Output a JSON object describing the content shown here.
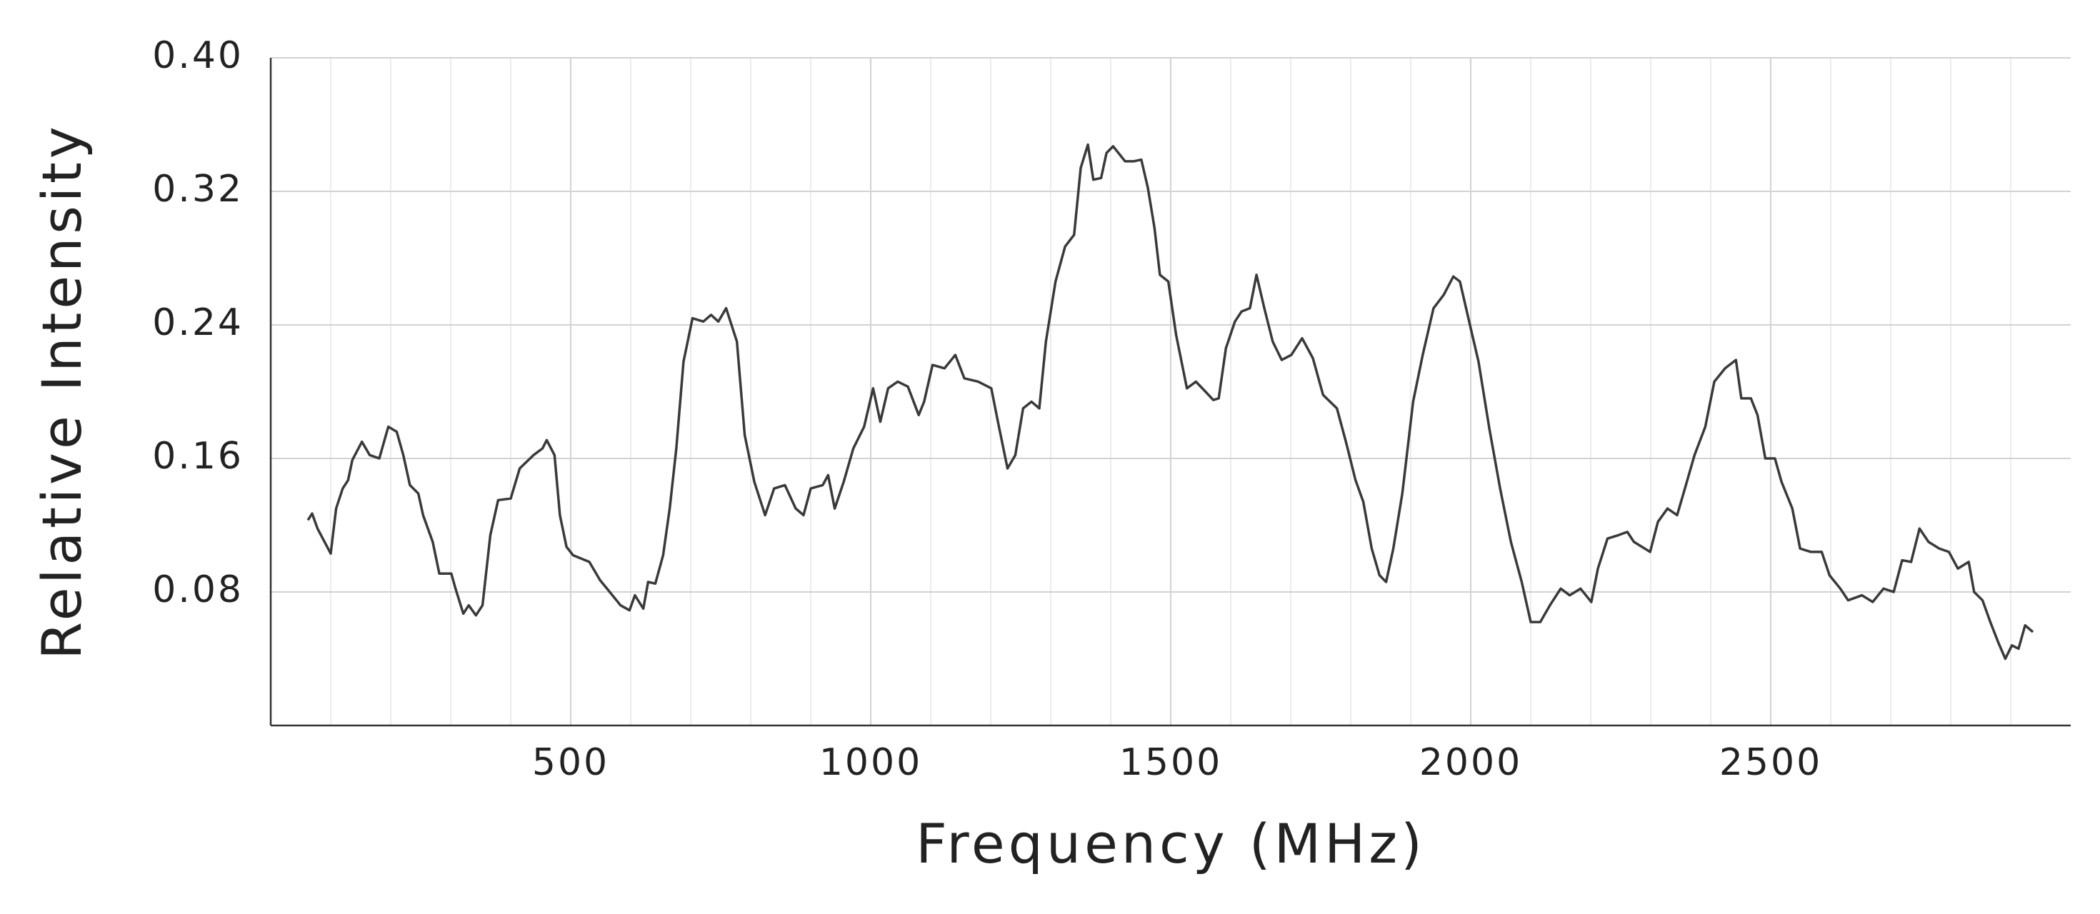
{
  "chart_data": {
    "type": "line",
    "x_label": "Frequency (MHz)",
    "y_label": "Relative Intensity",
    "xlim": [
      0,
      3000
    ],
    "xticks": [
      500,
      1000,
      1500,
      2000,
      2500
    ],
    "ylim": [
      0,
      0.4
    ],
    "yticks": [
      0.08,
      0.16,
      0.24,
      0.32,
      {
        "value": 0.4,
        "label": "0.40"
      }
    ],
    "grid": true,
    "series": [
      {
        "color": "#3a3a3a",
        "x": [
          62,
          69,
          78,
          100,
          109,
          120,
          129,
          136,
          152,
          165,
          181,
          196,
          210,
          221,
          232,
          246,
          254,
          270,
          281,
          301,
          308,
          321,
          330,
          342,
          353,
          366,
          379,
          400,
          415,
          438,
          453,
          460,
          473,
          482,
          493,
          504,
          531,
          549,
          565,
          583,
          598,
          607,
          621,
          629,
          641,
          654,
          665,
          676,
          688,
          703,
          721,
          734,
          746,
          759,
          777,
          790,
          806,
          824,
          839,
          857,
          875,
          888,
          900,
          920,
          929,
          940,
          955,
          971,
          989,
          1004,
          1016,
          1029,
          1045,
          1062,
          1080,
          1089,
          1103,
          1123,
          1141,
          1156,
          1179,
          1201,
          1212,
          1228,
          1241,
          1254,
          1268,
          1281,
          1292,
          1308,
          1324,
          1339,
          1350,
          1362,
          1371,
          1384,
          1393,
          1404,
          1424,
          1438,
          1451,
          1462,
          1473,
          1482,
          1496,
          1509,
          1527,
          1542,
          1558,
          1571,
          1580,
          1592,
          1607,
          1618,
          1632,
          1643,
          1656,
          1670,
          1685,
          1701,
          1719,
          1737,
          1754,
          1777,
          1792,
          1808,
          1821,
          1835,
          1848,
          1859,
          1871,
          1886,
          1904,
          1920,
          1938,
          1955,
          1971,
          1982,
          2000,
          2013,
          2031,
          2049,
          2067,
          2085,
          2100,
          2116,
          2132,
          2150,
          2165,
          2183,
          2201,
          2212,
          2228,
          2246,
          2261,
          2272,
          2299,
          2312,
          2328,
          2344,
          2357,
          2373,
          2391,
          2406,
          2424,
          2442,
          2451,
          2467,
          2478,
          2491,
          2507,
          2518,
          2536,
          2549,
          2567,
          2585,
          2598,
          2616,
          2629,
          2652,
          2670,
          2688,
          2705,
          2719,
          2734,
          2748,
          2763,
          2781,
          2797,
          2812,
          2830,
          2839,
          2853,
          2866,
          2879,
          2891,
          2902,
          2913,
          2924,
          2937
        ],
        "values": [
          0.123,
          0.127,
          0.118,
          0.103,
          0.13,
          0.142,
          0.147,
          0.159,
          0.17,
          0.162,
          0.16,
          0.179,
          0.176,
          0.162,
          0.144,
          0.139,
          0.126,
          0.11,
          0.091,
          0.091,
          0.082,
          0.067,
          0.072,
          0.066,
          0.072,
          0.114,
          0.135,
          0.136,
          0.154,
          0.162,
          0.166,
          0.171,
          0.162,
          0.126,
          0.107,
          0.102,
          0.098,
          0.087,
          0.08,
          0.072,
          0.069,
          0.078,
          0.07,
          0.086,
          0.085,
          0.102,
          0.13,
          0.166,
          0.218,
          0.244,
          0.242,
          0.246,
          0.242,
          0.25,
          0.23,
          0.174,
          0.146,
          0.126,
          0.142,
          0.144,
          0.13,
          0.126,
          0.142,
          0.144,
          0.15,
          0.13,
          0.146,
          0.166,
          0.179,
          0.202,
          0.182,
          0.202,
          0.206,
          0.203,
          0.186,
          0.194,
          0.216,
          0.214,
          0.222,
          0.208,
          0.206,
          0.202,
          0.182,
          0.154,
          0.162,
          0.19,
          0.194,
          0.19,
          0.23,
          0.266,
          0.287,
          0.294,
          0.334,
          0.348,
          0.327,
          0.328,
          0.343,
          0.347,
          0.338,
          0.338,
          0.339,
          0.322,
          0.298,
          0.27,
          0.266,
          0.234,
          0.202,
          0.206,
          0.2,
          0.195,
          0.196,
          0.226,
          0.242,
          0.248,
          0.25,
          0.27,
          0.25,
          0.23,
          0.219,
          0.222,
          0.232,
          0.22,
          0.198,
          0.19,
          0.17,
          0.147,
          0.134,
          0.106,
          0.09,
          0.086,
          0.106,
          0.139,
          0.194,
          0.222,
          0.25,
          0.258,
          0.269,
          0.266,
          0.238,
          0.218,
          0.178,
          0.142,
          0.11,
          0.086,
          0.062,
          0.062,
          0.072,
          0.082,
          0.078,
          0.082,
          0.074,
          0.094,
          0.112,
          0.114,
          0.116,
          0.11,
          0.104,
          0.122,
          0.13,
          0.126,
          0.142,
          0.162,
          0.179,
          0.206,
          0.214,
          0.219,
          0.196,
          0.196,
          0.186,
          0.16,
          0.16,
          0.146,
          0.13,
          0.106,
          0.104,
          0.104,
          0.09,
          0.082,
          0.075,
          0.078,
          0.074,
          0.082,
          0.08,
          0.099,
          0.098,
          0.118,
          0.11,
          0.106,
          0.104,
          0.094,
          0.098,
          0.08,
          0.075,
          0.062,
          0.05,
          0.04,
          0.048,
          0.046,
          0.06,
          0.056
        ]
      }
    ]
  }
}
